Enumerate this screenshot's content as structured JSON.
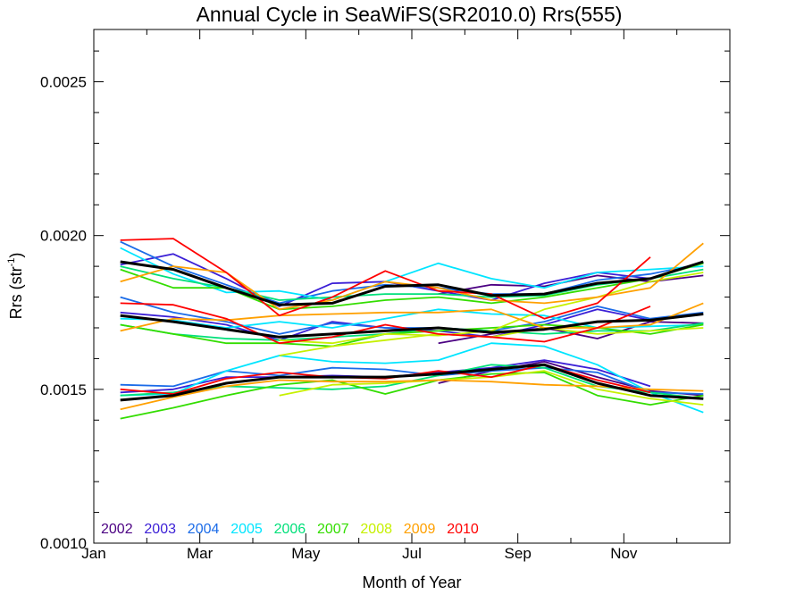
{
  "chart_data": {
    "type": "line",
    "title": "Annual Cycle in SeaWiFS(SR2010.0) Rrs(555)",
    "xlabel": "Month of Year",
    "ylabel_main": "Rrs (str",
    "ylabel_sup": "-1",
    "ylabel_end": ")",
    "xlim": [
      0.5,
      12.5
    ],
    "ylim": [
      0.001,
      0.00267
    ],
    "x_ticks": [
      {
        "x": 0.5,
        "label": "Jan"
      },
      {
        "x": 2.5,
        "label": "Mar"
      },
      {
        "x": 4.5,
        "label": "May"
      },
      {
        "x": 6.5,
        "label": "Jul"
      },
      {
        "x": 8.5,
        "label": "Sep"
      },
      {
        "x": 10.5,
        "label": "Nov"
      }
    ],
    "x_minor_ticks": [
      1.5,
      3.5,
      5.5,
      7.5,
      9.5,
      11.5
    ],
    "y_ticks": [
      {
        "y": 0.001,
        "label": "0.0010"
      },
      {
        "y": 0.0015,
        "label": "0.0015"
      },
      {
        "y": 0.002,
        "label": "0.0020"
      },
      {
        "y": 0.0025,
        "label": "0.0025"
      }
    ],
    "y_minor_ticks": [
      0.0011,
      0.0012,
      0.0013,
      0.0014,
      0.0016,
      0.0017,
      0.0018,
      0.0019,
      0.0021,
      0.0022,
      0.0023,
      0.0024,
      0.0026
    ],
    "legend": [
      {
        "label": "2002",
        "color": "#4b0082"
      },
      {
        "label": "2003",
        "color": "#3b1fd6"
      },
      {
        "label": "2004",
        "color": "#1a6be8"
      },
      {
        "label": "2005",
        "color": "#00e5ff"
      },
      {
        "label": "2006",
        "color": "#00e07a"
      },
      {
        "label": "2007",
        "color": "#33dd00"
      },
      {
        "label": "2008",
        "color": "#c6f000"
      },
      {
        "label": "2009",
        "color": "#ffa000"
      },
      {
        "label": "2010",
        "color": "#ff0000"
      }
    ],
    "x": [
      1,
      2,
      3,
      4,
      5,
      6,
      7,
      8,
      9,
      10,
      11,
      12
    ],
    "series": [
      {
        "color": "#4b0082",
        "values": [
          null,
          null,
          null,
          null,
          null,
          null,
          0.00181,
          0.00184,
          0.001835,
          0.00187,
          0.00185,
          0.00187
        ]
      },
      {
        "color": "#4b0082",
        "values": [
          null,
          null,
          null,
          null,
          null,
          null,
          0.00165,
          0.00168,
          0.0017,
          0.001665,
          0.00172,
          0.001715
        ]
      },
      {
        "color": "#4b0082",
        "values": [
          null,
          null,
          null,
          null,
          null,
          null,
          0.00152,
          0.00156,
          0.00159,
          0.00154,
          0.001495,
          0.00148
        ]
      },
      {
        "color": "#3b1fd6",
        "values": [
          0.001905,
          0.00194,
          0.00186,
          0.00177,
          0.001845,
          0.00185,
          0.00182,
          0.00179,
          0.001845,
          0.00188,
          0.00186,
          null
        ]
      },
      {
        "color": "#3b1fd6",
        "values": [
          0.00175,
          0.001735,
          0.00171,
          0.00166,
          0.00172,
          0.0017,
          0.00169,
          0.00167,
          0.00171,
          0.00176,
          0.001725,
          null
        ]
      },
      {
        "color": "#3b1fd6",
        "values": [
          0.00149,
          0.0015,
          0.00154,
          0.00154,
          0.001545,
          0.00154,
          0.001555,
          0.00157,
          0.001595,
          0.001565,
          0.00151,
          null
        ]
      },
      {
        "color": "#1a6be8",
        "values": [
          0.00198,
          0.0019,
          0.00184,
          0.00178,
          0.00182,
          0.00184,
          0.00183,
          0.00181,
          0.00181,
          0.001855,
          0.001875,
          0.00191
        ]
      },
      {
        "color": "#1a6be8",
        "values": [
          0.0018,
          0.00175,
          0.00172,
          0.00168,
          0.001715,
          0.0017,
          0.0017,
          0.00169,
          0.00172,
          0.00177,
          0.00173,
          0.00175
        ]
      },
      {
        "color": "#1a6be8",
        "values": [
          0.001515,
          0.00151,
          0.00156,
          0.001545,
          0.00157,
          0.001565,
          0.001545,
          0.00156,
          0.00157,
          0.001555,
          0.00149,
          0.001485
        ]
      },
      {
        "color": "#00e5ff",
        "values": [
          0.00196,
          0.001875,
          0.001815,
          0.00182,
          0.00179,
          0.00185,
          0.00191,
          0.00186,
          0.00183,
          0.00188,
          0.00189,
          0.0019
        ]
      },
      {
        "color": "#00e5ff",
        "values": [
          0.00173,
          0.001725,
          0.0017,
          0.00172,
          0.0017,
          0.00173,
          0.00176,
          0.001745,
          0.00174,
          0.0017,
          0.001705,
          0.00171
        ]
      },
      {
        "color": "#00e5ff",
        "values": [
          0.00148,
          0.001485,
          0.00156,
          0.00161,
          0.00159,
          0.001585,
          0.001595,
          0.00165,
          0.00164,
          0.00158,
          0.00149,
          0.001425
        ]
      },
      {
        "color": "#00e07a",
        "values": [
          0.0019,
          0.00186,
          0.00183,
          0.00179,
          0.0018,
          0.00181,
          0.00181,
          0.0018,
          0.001805,
          0.00184,
          0.00186,
          0.00189
        ]
      },
      {
        "color": "#00e07a",
        "values": [
          0.00171,
          0.00168,
          0.001665,
          0.00166,
          0.00167,
          0.00168,
          0.0017,
          0.00169,
          0.00168,
          0.00169,
          0.00169,
          0.001715
        ]
      },
      {
        "color": "#00e07a",
        "values": [
          0.00148,
          0.00149,
          0.00151,
          0.001505,
          0.0015,
          0.00151,
          0.001545,
          0.00158,
          0.00157,
          0.00151,
          0.00149,
          0.00147
        ]
      },
      {
        "color": "#33dd00",
        "values": [
          0.00189,
          0.00183,
          0.00183,
          0.00176,
          0.00177,
          0.00179,
          0.0018,
          0.00178,
          0.0018,
          0.00183,
          0.00186,
          0.00191
        ]
      },
      {
        "color": "#33dd00",
        "values": [
          0.00171,
          0.00168,
          0.00165,
          0.00165,
          0.00164,
          0.00168,
          0.00169,
          0.0017,
          0.00171,
          0.0017,
          0.00168,
          0.00171
        ]
      },
      {
        "color": "#33dd00",
        "values": [
          0.001405,
          0.00144,
          0.00148,
          0.001515,
          0.00153,
          0.001485,
          0.00153,
          0.00155,
          0.001555,
          0.00148,
          0.00145,
          0.00148
        ]
      },
      {
        "color": "#c6f000",
        "values": [
          null,
          null,
          null,
          0.00166,
          0.00165,
          0.00168,
          0.001675,
          0.00169,
          0.00176,
          0.0018,
          0.00185,
          0.00188
        ]
      },
      {
        "color": "#c6f000",
        "values": [
          null,
          null,
          null,
          0.00161,
          0.00164,
          0.00166,
          0.00168,
          0.00167,
          0.0017,
          0.00168,
          0.00169,
          0.0017
        ]
      },
      {
        "color": "#c6f000",
        "values": [
          null,
          null,
          null,
          0.00148,
          0.001515,
          0.00152,
          0.00153,
          0.00154,
          0.00156,
          0.0015,
          0.00147,
          0.00145
        ]
      },
      {
        "color": "#ffa000",
        "values": [
          0.00185,
          0.0019,
          0.00188,
          0.00176,
          0.00179,
          0.00185,
          0.00183,
          0.00179,
          0.00178,
          0.0018,
          0.00183,
          0.001975
        ]
      },
      {
        "color": "#ffa000",
        "values": [
          0.00169,
          0.00173,
          0.001725,
          0.00174,
          0.001745,
          0.00175,
          0.00175,
          0.00176,
          0.0017,
          0.0017,
          0.00171,
          0.00178
        ]
      },
      {
        "color": "#ffa000",
        "values": [
          0.001435,
          0.001475,
          0.00151,
          0.00153,
          0.001525,
          0.001525,
          0.00153,
          0.001525,
          0.001515,
          0.00151,
          0.0015,
          0.001495
        ]
      },
      {
        "color": "#ff0000",
        "values": [
          0.001985,
          0.00199,
          0.00188,
          0.00174,
          0.0018,
          0.001885,
          0.00182,
          0.00181,
          0.00173,
          0.00178,
          0.00193,
          null
        ]
      },
      {
        "color": "#ff0000",
        "values": [
          0.00178,
          0.001775,
          0.00173,
          0.00165,
          0.00167,
          0.00171,
          0.00168,
          0.00167,
          0.001655,
          0.0017,
          0.00177,
          null
        ]
      },
      {
        "color": "#ff0000",
        "values": [
          0.0015,
          0.001485,
          0.001535,
          0.001555,
          0.00154,
          0.001535,
          0.00156,
          0.00154,
          0.00158,
          0.00153,
          0.00149,
          null
        ]
      },
      {
        "color": "#000000",
        "bold": true,
        "values": [
          0.001915,
          0.00189,
          0.00183,
          0.001775,
          0.00178,
          0.001835,
          0.00184,
          0.001805,
          0.00181,
          0.001845,
          0.00186,
          0.001915
        ]
      },
      {
        "color": "#000000",
        "bold": true,
        "values": [
          0.00174,
          0.00172,
          0.001695,
          0.00167,
          0.00168,
          0.00169,
          0.0017,
          0.001685,
          0.001695,
          0.00172,
          0.001725,
          0.001745
        ]
      },
      {
        "color": "#000000",
        "bold": true,
        "values": [
          0.001465,
          0.00148,
          0.00152,
          0.00154,
          0.00154,
          0.00154,
          0.00155,
          0.001565,
          0.00158,
          0.00152,
          0.00148,
          0.00147
        ]
      }
    ]
  }
}
